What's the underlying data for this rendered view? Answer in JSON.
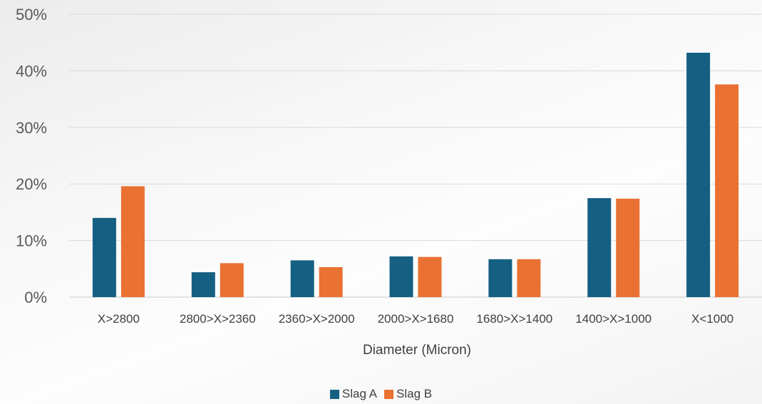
{
  "chart_data": {
    "type": "bar",
    "categories": [
      "X>2800",
      "2800>X>2360",
      "2360>X>2000",
      "2000>X>1680",
      "1680>X>1400",
      "1400>X>1000",
      "X<1000"
    ],
    "series": [
      {
        "name": "Slag A",
        "color": "#156082",
        "values": [
          14.0,
          4.4,
          6.5,
          7.2,
          6.7,
          17.5,
          43.2
        ]
      },
      {
        "name": "Slag B",
        "color": "#E97132",
        "values": [
          19.6,
          6.0,
          5.3,
          7.1,
          6.7,
          17.4,
          37.6
        ]
      }
    ],
    "xlabel": "Diameter (Micron)",
    "ylabel": "",
    "ylim": [
      0,
      50
    ],
    "yticks": [
      "0%",
      "10%",
      "20%",
      "30%",
      "40%",
      "50%"
    ],
    "grid": true,
    "legend_position": "bottom"
  }
}
